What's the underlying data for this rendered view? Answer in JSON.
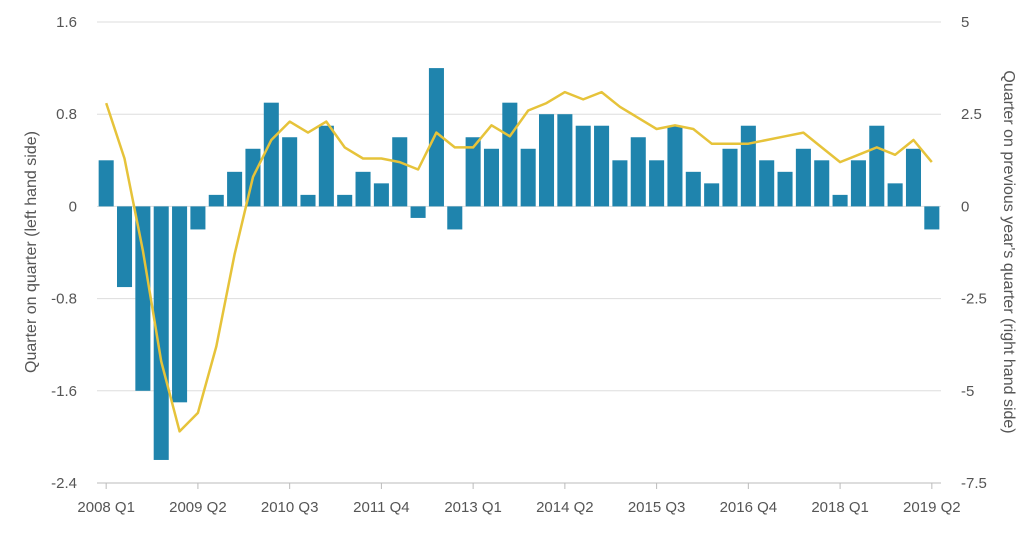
{
  "chart_data": {
    "type": "bar",
    "title": "",
    "ylabel": "Quarter on quarter (left hand side)",
    "y2label": "Quarter on previous year's quarter (right hand side)",
    "ylim": [
      -2.4,
      1.6
    ],
    "y2lim": [
      -7.5,
      5
    ],
    "yticks": [
      "1.6",
      "0.8",
      "0",
      "-0.8",
      "-1.6",
      "-2.4"
    ],
    "y2ticks": [
      "5",
      "2.5",
      "0",
      "-2.5",
      "-5",
      "-7.5"
    ],
    "xticks": [
      "2008 Q1",
      "2009 Q2",
      "2010 Q3",
      "2011 Q4",
      "2013 Q1",
      "2014 Q2",
      "2015 Q3",
      "2016 Q4",
      "2018 Q1",
      "2019 Q2"
    ],
    "grid": true,
    "colors": {
      "bars": "#1f84ad",
      "line": "#e6c33a",
      "grid": "#dddddd",
      "text": "#555555"
    },
    "categories": [
      "2008 Q1",
      "2008 Q2",
      "2008 Q3",
      "2008 Q4",
      "2009 Q1",
      "2009 Q2",
      "2009 Q3",
      "2009 Q4",
      "2010 Q1",
      "2010 Q2",
      "2010 Q3",
      "2010 Q4",
      "2011 Q1",
      "2011 Q2",
      "2011 Q3",
      "2011 Q4",
      "2012 Q1",
      "2012 Q2",
      "2012 Q3",
      "2012 Q4",
      "2013 Q1",
      "2013 Q2",
      "2013 Q3",
      "2013 Q4",
      "2014 Q1",
      "2014 Q2",
      "2014 Q3",
      "2014 Q4",
      "2015 Q1",
      "2015 Q2",
      "2015 Q3",
      "2015 Q4",
      "2016 Q1",
      "2016 Q2",
      "2016 Q3",
      "2016 Q4",
      "2017 Q1",
      "2017 Q2",
      "2017 Q3",
      "2017 Q4",
      "2018 Q1",
      "2018 Q2",
      "2018 Q3",
      "2018 Q4",
      "2019 Q1",
      "2019 Q2"
    ],
    "series": [
      {
        "kind": "bar",
        "axis": "left",
        "values": [
          0.4,
          -0.7,
          -1.6,
          -2.2,
          -1.7,
          -0.2,
          0.1,
          0.3,
          0.5,
          0.9,
          0.6,
          0.1,
          0.7,
          0.1,
          0.3,
          0.2,
          0.6,
          -0.1,
          1.2,
          -0.2,
          0.6,
          0.5,
          0.9,
          0.5,
          0.8,
          0.8,
          0.7,
          0.7,
          0.4,
          0.6,
          0.4,
          0.7,
          0.3,
          0.2,
          0.5,
          0.7,
          0.4,
          0.3,
          0.5,
          0.4,
          0.1,
          0.4,
          0.7,
          0.2,
          0.5,
          -0.2
        ]
      },
      {
        "kind": "line",
        "axis": "right",
        "values": [
          2.8,
          1.3,
          -1.2,
          -4.2,
          -6.1,
          -5.6,
          -3.8,
          -1.3,
          0.8,
          1.8,
          2.3,
          2.0,
          2.3,
          1.6,
          1.3,
          1.3,
          1.2,
          1.0,
          2.0,
          1.6,
          1.6,
          2.2,
          1.9,
          2.6,
          2.8,
          3.1,
          2.9,
          3.1,
          2.7,
          2.4,
          2.1,
          2.2,
          2.1,
          1.7,
          1.7,
          1.7,
          1.8,
          1.9,
          2.0,
          1.6,
          1.2,
          1.4,
          1.6,
          1.4,
          1.8,
          1.2
        ]
      }
    ]
  }
}
